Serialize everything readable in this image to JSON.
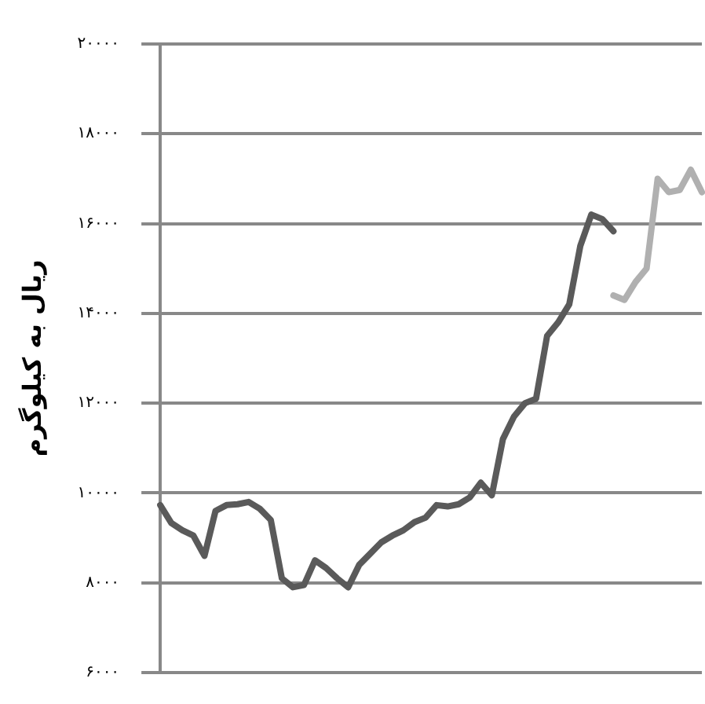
{
  "chart_data": {
    "type": "line",
    "ylabel": "ریال به کیلوگرم",
    "categories": [
      null,
      null,
      null,
      null,
      null,
      null,
      null,
      null,
      null,
      null,
      null,
      null,
      null,
      null,
      null,
      null,
      null,
      null,
      null,
      null,
      null,
      null,
      null,
      null,
      null,
      null,
      null,
      null,
      null,
      null,
      null,
      null,
      null,
      null,
      null,
      null,
      null,
      null,
      null,
      null,
      null,
      null,
      null,
      null,
      null,
      null,
      null,
      null,
      null,
      null
    ],
    "series": [
      {
        "color": "#5a5a5a",
        "values": [
          9730,
          9330,
          9170,
          9050,
          8600,
          9600,
          9730,
          9750,
          9800,
          9650,
          9400,
          8100,
          7900,
          7950,
          8500,
          8330,
          8100,
          7900,
          8400,
          8650,
          8900,
          9050,
          9170,
          9350,
          9450,
          9730,
          9700,
          9750,
          9900,
          10230,
          9950,
          11200,
          11700,
          12000,
          12100,
          13500,
          13800,
          14200,
          15500,
          16200,
          16100,
          15830,
          null,
          null,
          null,
          null,
          null,
          null,
          null,
          null
        ]
      },
      {
        "color": "#b0b0b0",
        "values": [
          null,
          null,
          null,
          null,
          null,
          null,
          null,
          null,
          null,
          null,
          null,
          null,
          null,
          null,
          null,
          null,
          null,
          null,
          null,
          null,
          null,
          null,
          null,
          null,
          null,
          null,
          null,
          null,
          null,
          null,
          null,
          null,
          null,
          null,
          null,
          null,
          null,
          null,
          null,
          null,
          null,
          14400,
          14300,
          14700,
          15000,
          17000,
          16700,
          16750,
          17200,
          16700
        ]
      }
    ],
    "ylim": [
      6000,
      20000
    ],
    "yticks": [
      {
        "value": 6000,
        "label": "۶۰۰۰"
      },
      {
        "value": 8000,
        "label": "۸۰۰۰"
      },
      {
        "value": 10000,
        "label": "۱۰۰۰۰"
      },
      {
        "value": 12000,
        "label": "۱۲۰۰۰"
      },
      {
        "value": 14000,
        "label": "۱۴۰۰۰"
      },
      {
        "value": 16000,
        "label": "۱۶۰۰۰"
      },
      {
        "value": 18000,
        "label": "۱۸۰۰۰"
      },
      {
        "value": 20000,
        "label": "۲۰۰۰۰"
      }
    ],
    "grid": "y",
    "legend": false,
    "marker": "none",
    "line_style": "solid",
    "tick_labels": "y"
  }
}
